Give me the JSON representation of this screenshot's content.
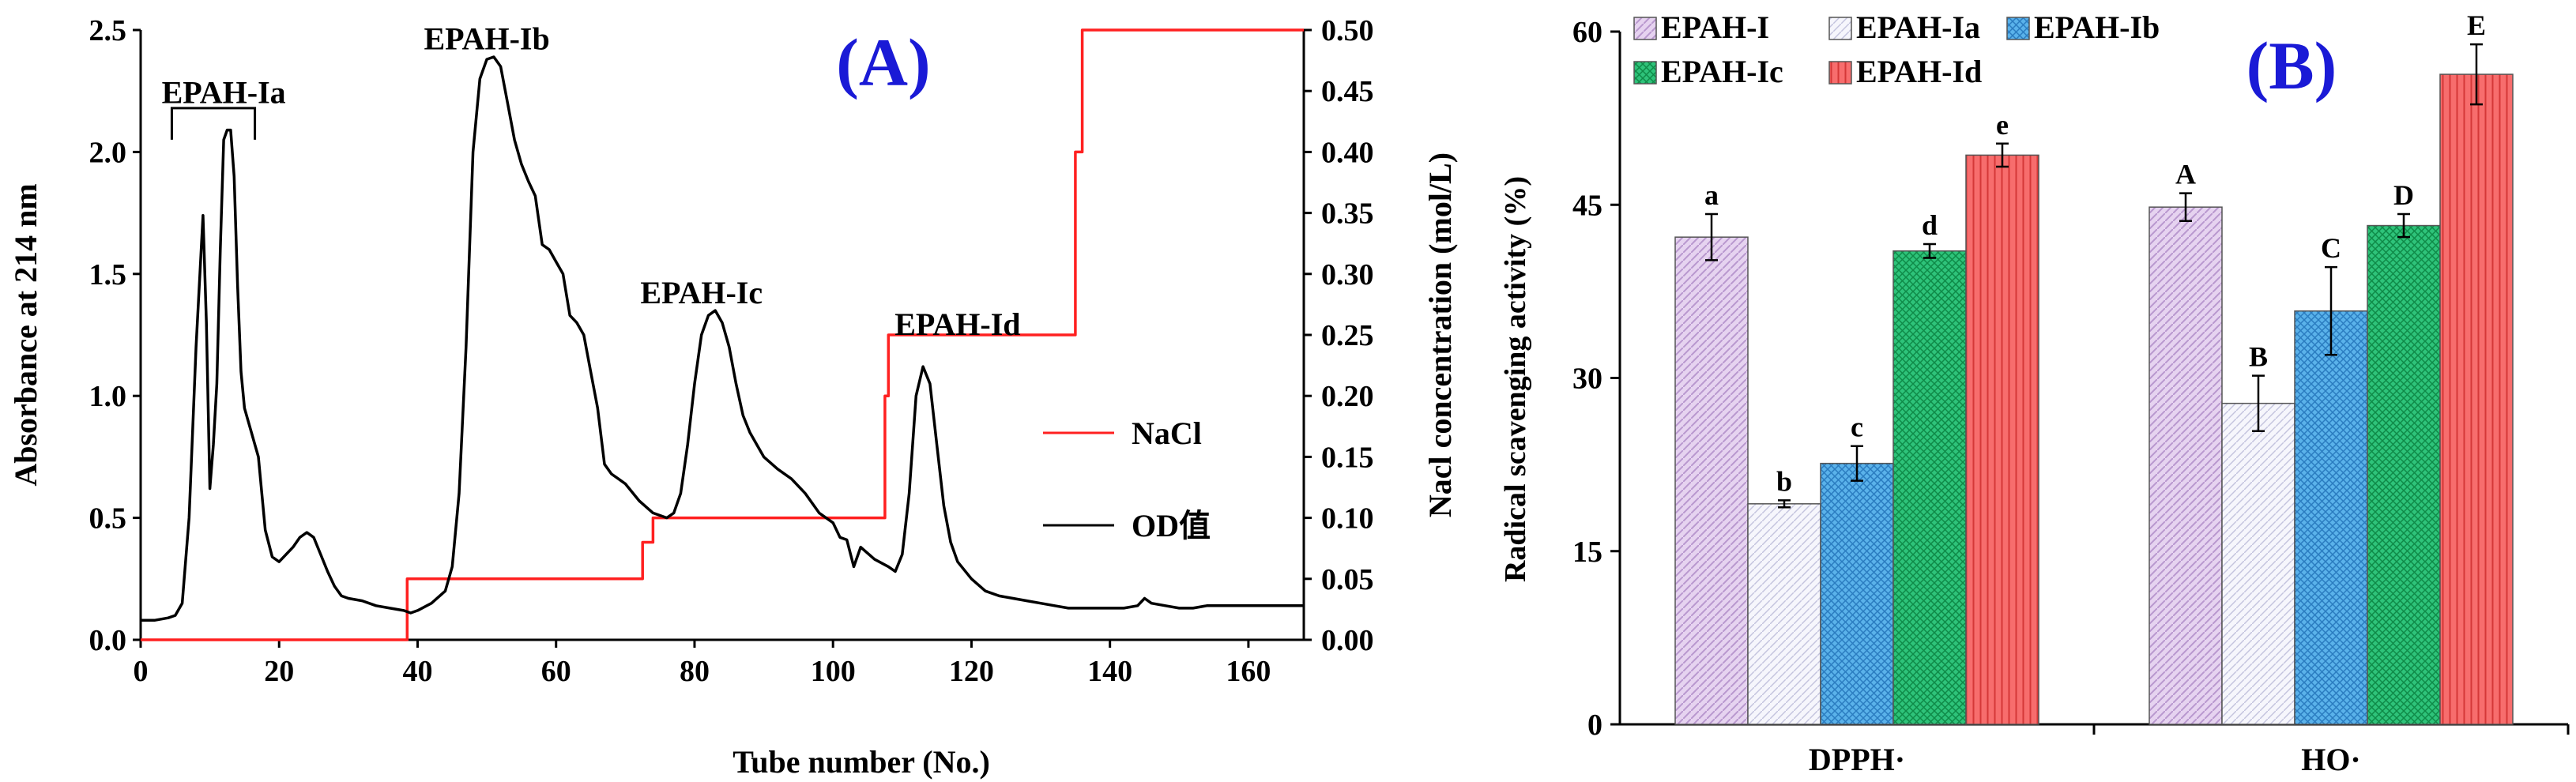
{
  "chart_data": [
    {
      "type": "line",
      "panel_label": "(A)",
      "xlabel": "Tube number (No.)",
      "ylabel_left": "Absorbance at 214 nm",
      "ylabel_right": "Nacl concentration (mol/L)",
      "xlim": [
        0,
        168
      ],
      "ylim_left": [
        0,
        2.5
      ],
      "ylim_right": [
        0,
        0.5
      ],
      "x_ticks": [
        "0",
        "20",
        "40",
        "60",
        "80",
        "100",
        "120",
        "140",
        "160"
      ],
      "y_left_ticks": [
        "0.0",
        "0.5",
        "1.0",
        "1.5",
        "2.0",
        "2.5"
      ],
      "y_right_ticks": [
        "0.00",
        "0.05",
        "0.10",
        "0.15",
        "0.20",
        "0.25",
        "0.30",
        "0.35",
        "0.40",
        "0.45",
        "0.50"
      ],
      "series": [
        {
          "name": "NaCl",
          "axis": "right",
          "color": "#ff2020",
          "x": [
            0,
            38.5,
            38.5,
            72.5,
            72.5,
            74,
            74,
            107.5,
            107.5,
            108,
            108,
            135,
            135,
            136,
            136,
            168
          ],
          "y": [
            0,
            0,
            0.05,
            0.05,
            0.08,
            0.08,
            0.1,
            0.1,
            0.2,
            0.2,
            0.25,
            0.25,
            0.4,
            0.4,
            0.5,
            0.5
          ]
        },
        {
          "name": "OD值",
          "axis": "left",
          "color": "#000000",
          "x": [
            0,
            2,
            4,
            5,
            6,
            7,
            8,
            9,
            9.5,
            10,
            10.5,
            11,
            11.5,
            12,
            12.5,
            13,
            13.5,
            14,
            14.5,
            15,
            15.5,
            16,
            16.5,
            17,
            18,
            19,
            20,
            21,
            22,
            23,
            24,
            25,
            26,
            27,
            28,
            29,
            30,
            32,
            34,
            36,
            38,
            39,
            40,
            42,
            44,
            45,
            46,
            47,
            48,
            49,
            50,
            51,
            52,
            53,
            54,
            55,
            56,
            57,
            58,
            59,
            60,
            61,
            62,
            63,
            64,
            65,
            66,
            67,
            68,
            69,
            70,
            72,
            74,
            76,
            77,
            78,
            79,
            80,
            81,
            82,
            83,
            84,
            85,
            86,
            87,
            88,
            89,
            90,
            92,
            94,
            96,
            98,
            100,
            101,
            102,
            103,
            104,
            106,
            108,
            109,
            110,
            111,
            112,
            113,
            114,
            115,
            116,
            117,
            118,
            120,
            122,
            124,
            126,
            128,
            130,
            132,
            134,
            136,
            138,
            140,
            142,
            144,
            145,
            146,
            148,
            150,
            152,
            154,
            156,
            158,
            160,
            162,
            164,
            166,
            168
          ],
          "y": [
            0.08,
            0.08,
            0.09,
            0.1,
            0.15,
            0.5,
            1.2,
            1.74,
            1.3,
            0.62,
            0.8,
            1.05,
            1.6,
            2.05,
            2.09,
            2.09,
            1.9,
            1.45,
            1.1,
            0.95,
            0.9,
            0.85,
            0.8,
            0.75,
            0.45,
            0.34,
            0.32,
            0.35,
            0.38,
            0.42,
            0.44,
            0.42,
            0.35,
            0.28,
            0.22,
            0.18,
            0.17,
            0.16,
            0.14,
            0.13,
            0.12,
            0.11,
            0.12,
            0.15,
            0.2,
            0.3,
            0.6,
            1.2,
            2.0,
            2.3,
            2.38,
            2.39,
            2.35,
            2.2,
            2.05,
            1.95,
            1.88,
            1.82,
            1.62,
            1.6,
            1.55,
            1.5,
            1.33,
            1.3,
            1.25,
            1.1,
            0.95,
            0.72,
            0.68,
            0.66,
            0.64,
            0.57,
            0.52,
            0.5,
            0.52,
            0.6,
            0.8,
            1.05,
            1.25,
            1.33,
            1.35,
            1.3,
            1.2,
            1.05,
            0.92,
            0.85,
            0.8,
            0.75,
            0.7,
            0.66,
            0.6,
            0.52,
            0.48,
            0.42,
            0.41,
            0.3,
            0.38,
            0.33,
            0.3,
            0.28,
            0.35,
            0.6,
            1.0,
            1.12,
            1.05,
            0.8,
            0.55,
            0.4,
            0.32,
            0.25,
            0.2,
            0.18,
            0.17,
            0.16,
            0.15,
            0.14,
            0.13,
            0.13,
            0.13,
            0.13,
            0.13,
            0.14,
            0.17,
            0.15,
            0.14,
            0.13,
            0.13,
            0.14,
            0.14,
            0.14,
            0.14,
            0.14,
            0.14,
            0.14,
            0.14
          ]
        }
      ],
      "annotations": [
        {
          "text": "EPAH-Ia",
          "x": 12,
          "y": 2.2
        },
        {
          "text": "EPAH-Ib",
          "x": 50,
          "y": 2.42
        },
        {
          "text": "EPAH-Ic",
          "x": 81,
          "y": 1.38
        },
        {
          "text": "EPAH-Id",
          "x": 118,
          "y": 1.25
        }
      ],
      "bracket": {
        "x_start": 4.5,
        "x_end": 16.5,
        "y": 2.18
      },
      "legend": [
        "NaCl",
        "OD值"
      ]
    },
    {
      "type": "bar",
      "panel_label": "(B)",
      "ylabel": "Radical scavenging activity (%)",
      "categories": [
        "DPPH·",
        "HO·"
      ],
      "ylim": [
        0,
        60
      ],
      "y_ticks": [
        "0",
        "15",
        "30",
        "45",
        "60"
      ],
      "series": [
        {
          "name": "EPAH-I",
          "color": "#e6d3f0",
          "hatch": "#b998cf",
          "values": [
            42.2,
            44.8
          ],
          "errors": [
            2.0,
            1.2
          ],
          "letters": [
            "a",
            "A"
          ]
        },
        {
          "name": "EPAH-Ia",
          "color": "#f4f4fb",
          "hatch": "#b9b9d8",
          "values": [
            19.1,
            27.8
          ],
          "errors": [
            0.3,
            2.4
          ],
          "letters": [
            "b",
            "B"
          ]
        },
        {
          "name": "EPAH-Ib",
          "color": "#59b0e8",
          "hatch": "#2a7cc0",
          "values": [
            22.6,
            35.8
          ],
          "errors": [
            1.5,
            3.8
          ],
          "letters": [
            "c",
            "C"
          ]
        },
        {
          "name": "EPAH-Ic",
          "color": "#2ec37a",
          "hatch": "#0f8a48",
          "values": [
            41.0,
            43.2
          ],
          "errors": [
            0.6,
            1.0
          ],
          "letters": [
            "d",
            "D"
          ]
        },
        {
          "name": "EPAH-Id",
          "color": "#f76d6d",
          "hatch": "#d43838",
          "values": [
            49.3,
            56.3
          ],
          "errors": [
            1.0,
            2.6
          ],
          "letters": [
            "e",
            "E"
          ]
        }
      ],
      "legend": [
        "EPAH-I",
        "EPAH-Ia",
        "EPAH-Ib",
        "EPAH-Ic",
        "EPAH-Id"
      ]
    }
  ]
}
